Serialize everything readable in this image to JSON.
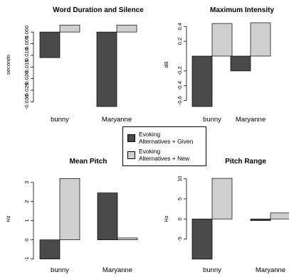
{
  "legend": {
    "entries": [
      {
        "label_line1": "Evoking",
        "label_line2": "Alternatives + Given",
        "color": "#4a4a4a"
      },
      {
        "label_line1": "Evoking",
        "label_line2": "Alternatives + New",
        "color": "#cfcfcf"
      }
    ]
  },
  "chart_data": [
    {
      "type": "bar",
      "title": "Word Duration and Silence",
      "ylabel": "seconds",
      "categories": [
        "bunny",
        "Maryanne"
      ],
      "series": [
        {
          "name": "Evoking Alternatives + Given",
          "values": [
            -0.011,
            -0.032
          ]
        },
        {
          "name": "Evoking Alternatives + New",
          "values": [
            0.003,
            0.003
          ]
        }
      ],
      "ylim": [
        -0.032,
        0.004
      ],
      "yticks": [
        0.0,
        -0.005,
        -0.01,
        -0.015,
        -0.02,
        -0.025,
        -0.03
      ],
      "ytick_labels": [
        "0.000",
        "-0.005",
        "-0.010",
        "-0.015",
        "-0.020",
        "-0.025",
        "-0.030"
      ]
    },
    {
      "type": "bar",
      "title": "Maximum Intensity",
      "ylabel": "dB",
      "categories": [
        "bunny",
        "Maryanne"
      ],
      "series": [
        {
          "name": "Evoking Alternatives + Given",
          "values": [
            -0.68,
            -0.2
          ]
        },
        {
          "name": "Evoking Alternatives + New",
          "values": [
            0.44,
            0.45
          ]
        }
      ],
      "ylim": [
        -0.68,
        0.45
      ],
      "yticks": [
        0.4,
        0.2,
        -0.2,
        -0.4,
        -0.6
      ],
      "ytick_labels": [
        "0.4",
        "0.2",
        "-0.2",
        "-0.4",
        "-0.6"
      ]
    },
    {
      "type": "bar",
      "title": "Mean Pitch",
      "ylabel": "Hz",
      "categories": [
        "bunny",
        "Maryanne"
      ],
      "series": [
        {
          "name": "Evoking Alternatives + Given",
          "values": [
            -1.0,
            2.45
          ]
        },
        {
          "name": "Evoking Alternatives + New",
          "values": [
            3.2,
            0.1
          ]
        }
      ],
      "ylim": [
        -1.05,
        3.25
      ],
      "yticks": [
        3,
        2,
        1,
        0,
        -1
      ],
      "ytick_labels": [
        "3",
        "2",
        "1",
        "0",
        "-1"
      ]
    },
    {
      "type": "bar",
      "title": "Pitch Range",
      "ylabel": "Hz",
      "categories": [
        "bunny",
        "Maryanne"
      ],
      "series": [
        {
          "name": "Evoking Alternatives + Given",
          "values": [
            -10.0,
            -0.4
          ]
        },
        {
          "name": "Evoking Alternatives + New",
          "values": [
            10.1,
            1.5
          ]
        }
      ],
      "ylim": [
        -10.2,
        10.3
      ],
      "yticks": [
        10,
        5,
        0,
        -5
      ],
      "ytick_labels": [
        "10",
        "5",
        "0",
        "-5"
      ]
    }
  ]
}
